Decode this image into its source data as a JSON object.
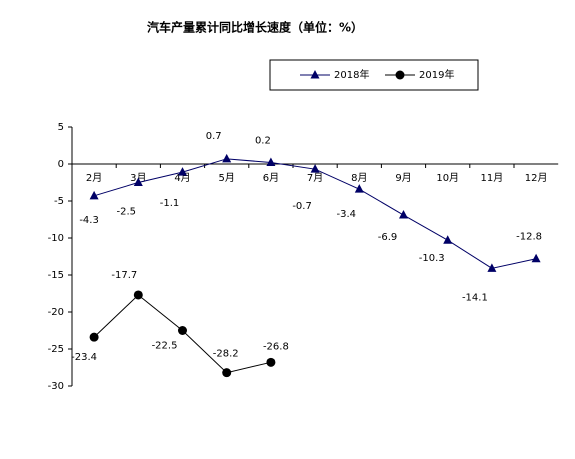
{
  "chart_data": {
    "type": "line",
    "title": "汽车产量累计同比增长速度（单位：%）",
    "categories": [
      "2月",
      "3月",
      "4月",
      "5月",
      "6月",
      "7月",
      "8月",
      "9月",
      "10月",
      "11月",
      "12月"
    ],
    "series": [
      {
        "name": "2018年",
        "color": "#000066",
        "marker": "triangle",
        "values": [
          -4.3,
          -2.5,
          -1.1,
          0.7,
          0.2,
          -0.7,
          -3.4,
          -6.9,
          -10.3,
          -14.1,
          -12.8
        ]
      },
      {
        "name": "2019年",
        "color": "#000000",
        "marker": "circle",
        "values": [
          -23.4,
          -17.7,
          -22.5,
          -28.2,
          -26.8,
          null,
          null,
          null,
          null,
          null,
          null
        ]
      }
    ],
    "ylim": [
      -30,
      5
    ],
    "yticks": [
      5,
      0,
      -5,
      -10,
      -15,
      -20,
      -25,
      -30
    ],
    "grid": false
  }
}
